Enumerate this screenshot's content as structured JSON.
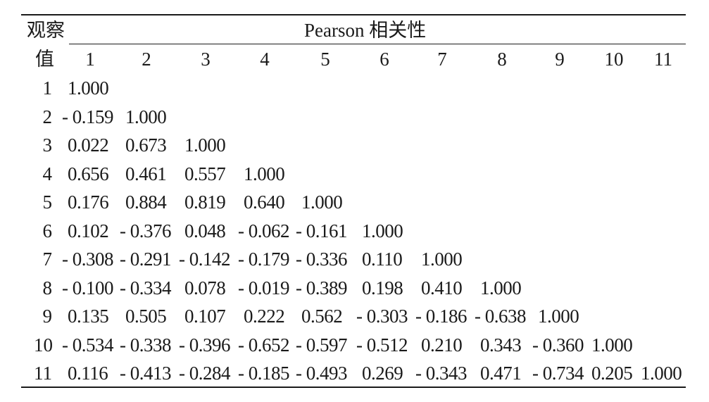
{
  "header": {
    "corner_top": "观察",
    "corner_bottom": "值",
    "group_title": "Pearson 相关性"
  },
  "columns": [
    "1",
    "2",
    "3",
    "4",
    "5",
    "6",
    "7",
    "8",
    "9",
    "10",
    "11"
  ],
  "rows": [
    {
      "label": "1",
      "values": [
        "1.000"
      ]
    },
    {
      "label": "2",
      "values": [
        "- 0.159",
        "1.000"
      ]
    },
    {
      "label": "3",
      "values": [
        "0.022",
        "0.673",
        "1.000"
      ]
    },
    {
      "label": "4",
      "values": [
        "0.656",
        "0.461",
        "0.557",
        "1.000"
      ]
    },
    {
      "label": "5",
      "values": [
        "0.176",
        "0.884",
        "0.819",
        "0.640",
        "1.000"
      ]
    },
    {
      "label": "6",
      "values": [
        "0.102",
        "- 0.376",
        "0.048",
        "- 0.062",
        "- 0.161",
        "1.000"
      ]
    },
    {
      "label": "7",
      "values": [
        "- 0.308",
        "- 0.291",
        "- 0.142",
        "- 0.179",
        "- 0.336",
        "0.110",
        "1.000"
      ]
    },
    {
      "label": "8",
      "values": [
        "- 0.100",
        "- 0.334",
        "0.078",
        "- 0.019",
        "- 0.389",
        "0.198",
        "0.410",
        "1.000"
      ]
    },
    {
      "label": "9",
      "values": [
        "0.135",
        "0.505",
        "0.107",
        "0.222",
        "0.562",
        "- 0.303",
        "- 0.186",
        "- 0.638",
        "1.000"
      ]
    },
    {
      "label": "10",
      "values": [
        "- 0.534",
        "- 0.338",
        "- 0.396",
        "- 0.652",
        "- 0.597",
        "- 0.512",
        "0.210",
        "0.343",
        "- 0.360",
        "1.000"
      ]
    },
    {
      "label": "11",
      "values": [
        "0.116",
        "- 0.413",
        "- 0.284",
        "- 0.185",
        "- 0.493",
        "0.269",
        "- 0.343",
        "0.471",
        "- 0.734",
        "0.205",
        "1.000"
      ]
    }
  ]
}
